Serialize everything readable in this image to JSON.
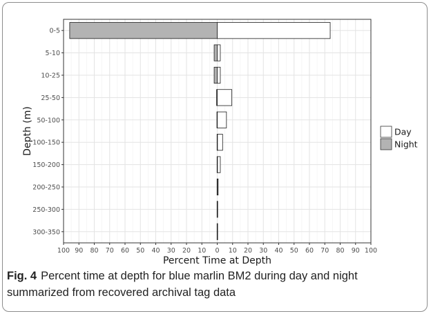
{
  "chart_data": {
    "type": "bar",
    "orientation": "horizontal-back-to-back",
    "categories": [
      "0-5",
      "5-10",
      "10-25",
      "25-50",
      "50-100",
      "100-150",
      "150-200",
      "200-250",
      "250-300",
      "300-350"
    ],
    "series": [
      {
        "name": "Day",
        "color": "#ffffff",
        "direction": "right",
        "values": [
          73.5,
          2.0,
          2.0,
          9.5,
          6.0,
          3.5,
          2.0,
          0.6,
          0.3,
          0.2
        ]
      },
      {
        "name": "Night",
        "color": "#b3b3b3",
        "direction": "left",
        "values": [
          96.0,
          2.0,
          2.0,
          0.4,
          0.2,
          0.1,
          0.1,
          0.1,
          0.1,
          0.1
        ]
      }
    ],
    "xlabel": "Percent Time at Depth",
    "ylabel": "Depth (m)",
    "xticks": [
      100,
      90,
      80,
      70,
      60,
      50,
      40,
      30,
      20,
      10,
      0,
      10,
      20,
      30,
      40,
      50,
      60,
      70,
      80,
      90,
      100
    ],
    "xlim": [
      -100,
      100
    ],
    "grid": true,
    "legend_position": "right"
  },
  "caption": {
    "label": "Fig. 4",
    "text": "Percent time at depth for blue marlin BM2 during day and night summarized from recovered archival tag data"
  }
}
